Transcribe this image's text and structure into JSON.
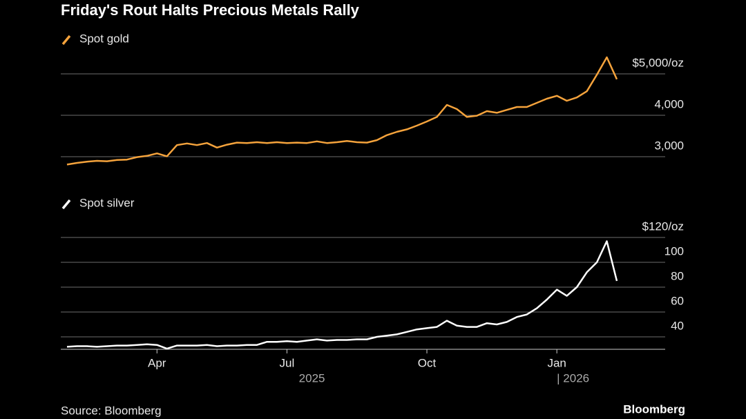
{
  "title": "Friday's Rout Halts Precious Metals Rally",
  "source": "Source: Bloomberg",
  "brand": "Bloomberg",
  "chart_data": [
    {
      "type": "line",
      "grid": true,
      "series": [
        {
          "name": "Spot gold",
          "color": "#f5a33c",
          "values": [
            2810,
            2850,
            2880,
            2900,
            2890,
            2920,
            2930,
            2990,
            3020,
            3080,
            3010,
            3280,
            3320,
            3280,
            3330,
            3220,
            3290,
            3340,
            3330,
            3350,
            3330,
            3350,
            3330,
            3340,
            3330,
            3370,
            3330,
            3350,
            3380,
            3350,
            3340,
            3400,
            3520,
            3600,
            3660,
            3750,
            3850,
            3960,
            4250,
            4150,
            3960,
            3990,
            4100,
            4060,
            4130,
            4200,
            4200,
            4300,
            4400,
            4470,
            4350,
            4430,
            4580,
            4980,
            5400,
            4870
          ]
        }
      ],
      "ylim": [
        2700,
        5500
      ],
      "yticks": [
        {
          "value": 3000,
          "label": "3,000"
        },
        {
          "value": 4000,
          "label": "4,000"
        },
        {
          "value": 5000,
          "label": "$5,000/oz"
        }
      ]
    },
    {
      "type": "line",
      "grid": true,
      "categories": [
        null,
        null,
        null,
        null,
        null,
        null,
        null,
        null,
        null,
        "Apr",
        null,
        null,
        null,
        null,
        null,
        null,
        null,
        null,
        null,
        null,
        null,
        null,
        "Jul",
        null,
        null,
        null,
        null,
        null,
        null,
        null,
        null,
        null,
        null,
        null,
        null,
        null,
        "Oct",
        null,
        null,
        null,
        null,
        null,
        null,
        null,
        null,
        null,
        null,
        null,
        null,
        "Jan",
        null,
        null,
        null,
        null,
        null,
        null
      ],
      "years": [
        "2025",
        "| 2026"
      ],
      "series": [
        {
          "name": "Spot silver",
          "color": "#ffffff",
          "values": [
            32,
            32.5,
            32.5,
            32,
            32.5,
            33,
            33,
            33.5,
            34,
            33.5,
            30.5,
            33,
            33,
            33,
            33.5,
            32.5,
            33,
            33,
            33.5,
            33.5,
            36,
            36,
            36.5,
            36,
            37,
            38,
            37,
            37.5,
            37.5,
            38,
            38,
            40,
            41,
            42,
            44,
            46,
            47,
            48,
            53,
            49,
            48,
            48,
            51,
            50,
            52,
            56,
            58,
            63,
            70,
            78,
            73,
            80,
            92,
            100,
            117,
            85
          ]
        }
      ],
      "ylim": [
        30,
        120
      ],
      "yticks": [
        40,
        60,
        80,
        100,
        {
          "value": 120,
          "label": "$120/oz"
        }
      ]
    }
  ]
}
